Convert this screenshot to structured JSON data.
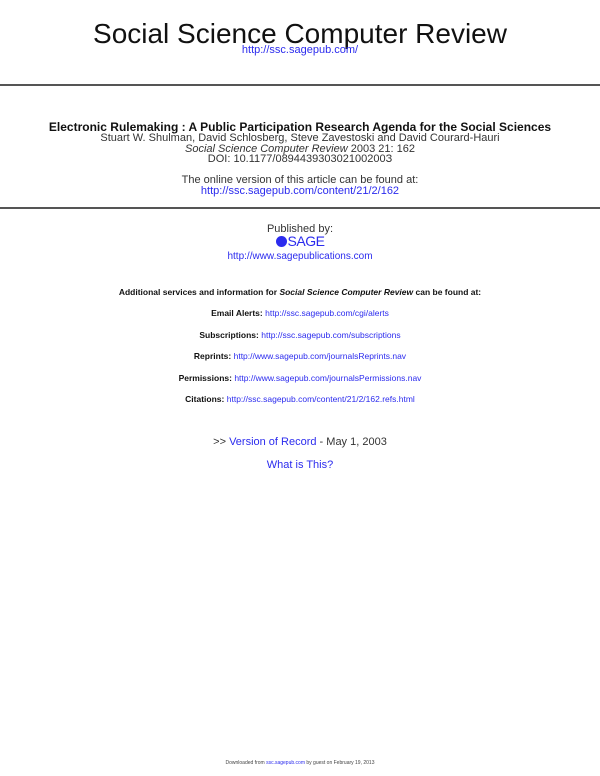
{
  "journal": {
    "title": "Social Science Computer Review",
    "url": "http://ssc.sagepub.com/"
  },
  "article": {
    "title": "Electronic Rulemaking : A Public Participation Research Agenda for the Social Sciences",
    "authors": "Stuart W. Shulman, David Schlosberg, Steve Zavestoski and David Courard-Hauri",
    "citation_journal": "Social Science Computer Review",
    "citation_rest": " 2003 21: 162",
    "doi": "DOI: 10.1177/089443930302100200З",
    "online_label": "The online version of this article can be found at:",
    "online_url": "http://ssc.sagepub.com/content/21/2/162"
  },
  "publisher": {
    "label": "Published by:",
    "logo": "SAGE",
    "url": "http://www.sagepublications.com"
  },
  "services": {
    "intro_pre": "Additional services and information for ",
    "intro_journal": "Social Science Computer Review",
    "intro_post": " can be found at:",
    "items": [
      {
        "label": "Email Alerts:",
        "url": "http://ssc.sagepub.com/cgi/alerts"
      },
      {
        "label": "Subscriptions:",
        "url": "http://ssc.sagepub.com/subscriptions"
      },
      {
        "label": "Reprints:",
        "url": "http://www.sagepub.com/journalsReprints.nav"
      },
      {
        "label": "Permissions:",
        "url": "http://www.sagepub.com/journalsPermissions.nav"
      },
      {
        "label": "Citations:",
        "url": "http://ssc.sagepub.com/content/21/2/162.refs.html"
      }
    ]
  },
  "version": {
    "prefix": ">> ",
    "link": "Version of Record",
    "date": " - May 1, 2003",
    "what": "What is This?"
  },
  "footer": {
    "pre": "Downloaded from ",
    "link": "ssc.sagepub.com",
    "post": " by guest on February 19, 2013"
  },
  "colors": {
    "link": "#2b2bee",
    "rule": "#555555"
  }
}
